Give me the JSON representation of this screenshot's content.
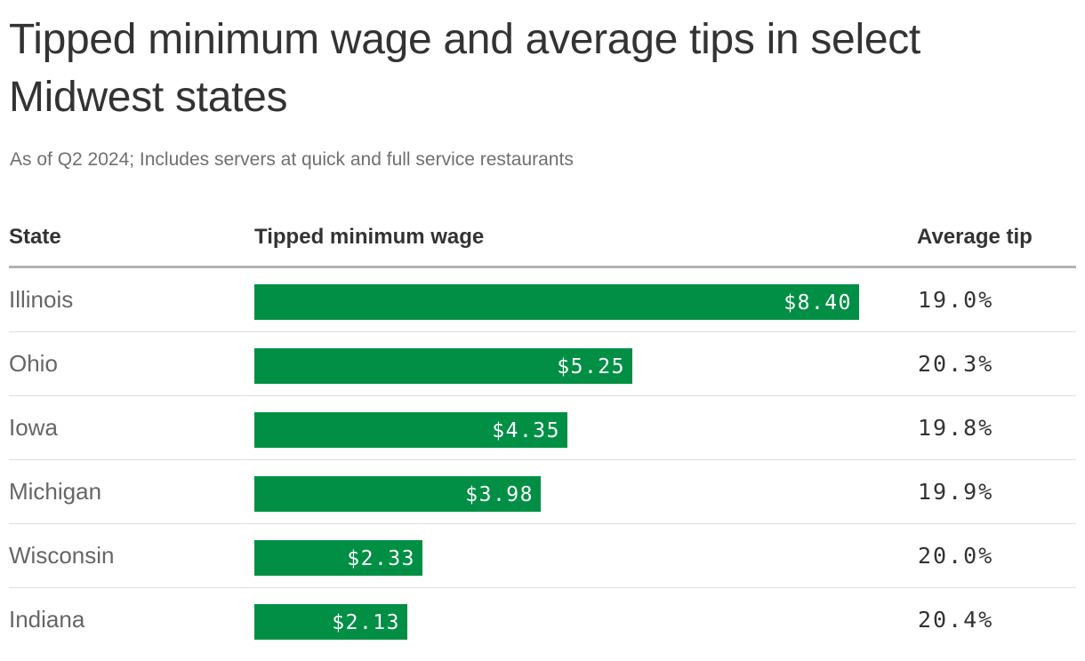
{
  "title": "Tipped minimum wage and average tips in select Midwest states",
  "subtitle": "As of Q2 2024; Includes servers at quick and full service restaurants",
  "columns": {
    "state": "State",
    "wage": "Tipped minimum wage",
    "tip": "Average tip"
  },
  "colors": {
    "bar": "#008f45",
    "text": "#333333",
    "state_text": "#666666",
    "subtitle_text": "#707070"
  },
  "chart_data": {
    "type": "bar",
    "orientation": "horizontal",
    "xlim": [
      0,
      8.4
    ],
    "categories": [
      "Illinois",
      "Ohio",
      "Iowa",
      "Michigan",
      "Wisconsin",
      "Indiana"
    ],
    "values": [
      8.4,
      5.25,
      4.35,
      3.98,
      2.33,
      2.13
    ],
    "value_labels": [
      "$8.40",
      "$5.25",
      "$4.35",
      "$3.98",
      "$2.33",
      "$2.13"
    ],
    "average_tip": [
      "19.0%",
      "20.3%",
      "19.8%",
      "19.9%",
      "20.0%",
      "20.4%"
    ]
  }
}
